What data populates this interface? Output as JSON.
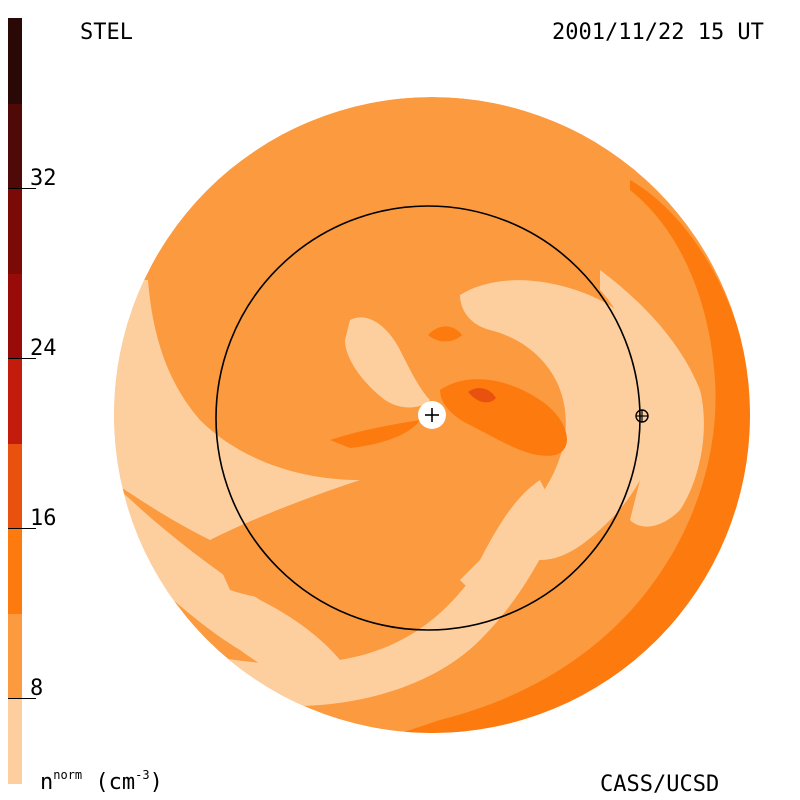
{
  "header": {
    "left_label": "STEL",
    "right_label": "2001/11/22 15 UT"
  },
  "footer": {
    "unit_label_main": "n",
    "unit_label_sup": "norm",
    "unit_label_tail": "(cm",
    "unit_label_exp": "-3",
    "unit_label_close": ")",
    "credit": "CASS/UCSD"
  },
  "colorbar": {
    "ticks": [
      "32",
      "24",
      "16",
      "8"
    ],
    "tick_values": [
      32,
      24,
      16,
      8
    ],
    "range": [
      0,
      36
    ],
    "levels": [
      {
        "from": 0,
        "to": 4,
        "color": "#fdcf9f"
      },
      {
        "from": 4,
        "to": 8,
        "color": "#fb9a3e"
      },
      {
        "from": 8,
        "to": 12,
        "color": "#fd7a0e"
      },
      {
        "from": 12,
        "to": 16,
        "color": "#e8520e"
      },
      {
        "from": 16,
        "to": 20,
        "color": "#c41c0c"
      },
      {
        "from": 20,
        "to": 24,
        "color": "#980b08"
      },
      {
        "from": 24,
        "to": 28,
        "color": "#7a0a06"
      },
      {
        "from": 28,
        "to": 32,
        "color": "#4f0906"
      },
      {
        "from": 32,
        "to": 36,
        "color": "#2a0806"
      }
    ]
  },
  "map": {
    "colors": {
      "light": "#fdcf9f",
      "mid": "#fb9a3e",
      "dark": "#fd7a0e",
      "darker": "#e8520e",
      "darkest": "#c41c0c"
    },
    "markers": [
      "sun-marker",
      "earth-marker"
    ]
  }
}
